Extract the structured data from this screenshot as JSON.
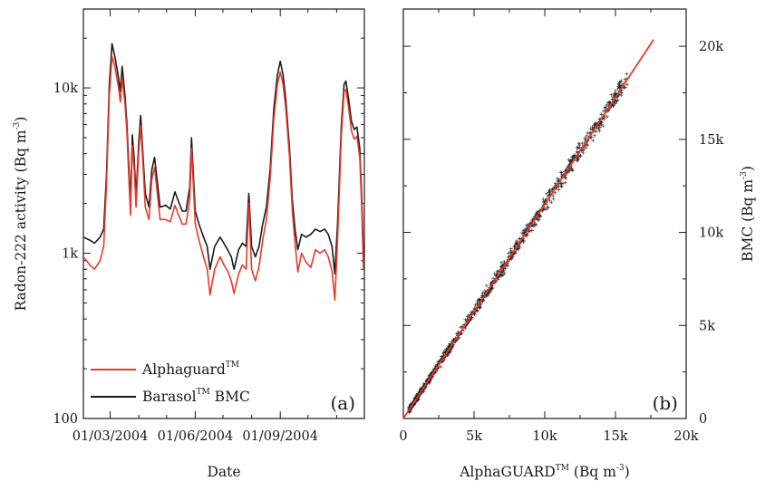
{
  "chart_data": [
    {
      "panel": "a",
      "type": "line",
      "panel_label": "(a)",
      "xlabel": "Date",
      "ylabel": {
        "main": "Radon-222 activity (Bq m",
        "sup": "-3",
        "close": ")"
      },
      "yscale": "log",
      "ylim": [
        100,
        30000
      ],
      "yticks": [
        100,
        1000,
        10000
      ],
      "ytick_labels": [
        "100",
        "1k",
        "10k"
      ],
      "x_axis_start": "2004-02-01",
      "x_axis_end": "2004-12-01",
      "xticks": [
        "2004-03-01",
        "2004-06-01",
        "2004-09-01"
      ],
      "xtick_labels": [
        "01/03/2004",
        "01/06/2004",
        "01/09/2004"
      ],
      "legend_position": "bottom-left",
      "series": [
        {
          "name": "Alphaguard",
          "name_sup": "TM",
          "name_suffix": "",
          "color": "#e8392c",
          "points": [
            [
              "2004-02-01",
              950
            ],
            [
              "2004-02-08",
              850
            ],
            [
              "2004-02-13",
              800
            ],
            [
              "2004-02-19",
              900
            ],
            [
              "2004-02-23",
              1100
            ],
            [
              "2004-02-26",
              2600
            ],
            [
              "2004-02-29",
              9000
            ],
            [
              "2004-03-03",
              15500
            ],
            [
              "2004-03-06",
              13500
            ],
            [
              "2004-03-10",
              10000
            ],
            [
              "2004-03-12",
              8200
            ],
            [
              "2004-03-14",
              11500
            ],
            [
              "2004-03-17",
              8000
            ],
            [
              "2004-03-19",
              5500
            ],
            [
              "2004-03-21",
              3000
            ],
            [
              "2004-03-23",
              1700
            ],
            [
              "2004-03-25",
              4500
            ],
            [
              "2004-03-27",
              3200
            ],
            [
              "2004-03-29",
              1900
            ],
            [
              "2004-04-01",
              4200
            ],
            [
              "2004-04-03",
              5900
            ],
            [
              "2004-04-05",
              3800
            ],
            [
              "2004-04-08",
              1900
            ],
            [
              "2004-04-12",
              1600
            ],
            [
              "2004-04-15",
              2800
            ],
            [
              "2004-04-18",
              3300
            ],
            [
              "2004-04-21",
              2300
            ],
            [
              "2004-04-24",
              1600
            ],
            [
              "2004-04-30",
              1600
            ],
            [
              "2004-05-05",
              1550
            ],
            [
              "2004-05-10",
              1950
            ],
            [
              "2004-05-14",
              1700
            ],
            [
              "2004-05-18",
              1500
            ],
            [
              "2004-05-22",
              1500
            ],
            [
              "2004-05-26",
              2100
            ],
            [
              "2004-05-28",
              4300
            ],
            [
              "2004-05-30",
              2600
            ],
            [
              "2004-06-01",
              1500
            ],
            [
              "2004-06-05",
              1200
            ],
            [
              "2004-06-10",
              950
            ],
            [
              "2004-06-14",
              800
            ],
            [
              "2004-06-17",
              560
            ],
            [
              "2004-06-22",
              800
            ],
            [
              "2004-06-28",
              950
            ],
            [
              "2004-07-02",
              850
            ],
            [
              "2004-07-06",
              780
            ],
            [
              "2004-07-10",
              680
            ],
            [
              "2004-07-13",
              570
            ],
            [
              "2004-07-18",
              750
            ],
            [
              "2004-07-22",
              850
            ],
            [
              "2004-07-26",
              800
            ],
            [
              "2004-07-29",
              2000
            ],
            [
              "2004-08-01",
              800
            ],
            [
              "2004-08-05",
              680
            ],
            [
              "2004-08-09",
              830
            ],
            [
              "2004-08-13",
              1200
            ],
            [
              "2004-08-17",
              1600
            ],
            [
              "2004-08-21",
              2800
            ],
            [
              "2004-08-25",
              6500
            ],
            [
              "2004-08-29",
              10500
            ],
            [
              "2004-09-01",
              12500
            ],
            [
              "2004-09-04",
              10500
            ],
            [
              "2004-09-07",
              7500
            ],
            [
              "2004-09-11",
              3800
            ],
            [
              "2004-09-14",
              1800
            ],
            [
              "2004-09-17",
              1150
            ],
            [
              "2004-09-20",
              770
            ],
            [
              "2004-09-24",
              1000
            ],
            [
              "2004-09-29",
              880
            ],
            [
              "2004-10-04",
              820
            ],
            [
              "2004-10-09",
              1050
            ],
            [
              "2004-10-14",
              1000
            ],
            [
              "2004-10-19",
              1050
            ],
            [
              "2004-10-23",
              950
            ],
            [
              "2004-10-27",
              780
            ],
            [
              "2004-10-30",
              520
            ],
            [
              "2004-11-02",
              1200
            ],
            [
              "2004-11-06",
              5000
            ],
            [
              "2004-11-09",
              9500
            ],
            [
              "2004-11-11",
              9800
            ],
            [
              "2004-11-14",
              7500
            ],
            [
              "2004-11-17",
              5500
            ],
            [
              "2004-11-20",
              4900
            ],
            [
              "2004-11-23",
              5100
            ],
            [
              "2004-11-26",
              3800
            ],
            [
              "2004-11-28",
              2000
            ],
            [
              "2004-11-30",
              800
            ]
          ]
        },
        {
          "name": "Barasol",
          "name_sup": "TM",
          "name_suffix": " BMC",
          "color": "#1a1a1a",
          "points": [
            [
              "2004-02-01",
              1250
            ],
            [
              "2004-02-08",
              1200
            ],
            [
              "2004-02-13",
              1150
            ],
            [
              "2004-02-19",
              1250
            ],
            [
              "2004-02-23",
              1400
            ],
            [
              "2004-02-26",
              3000
            ],
            [
              "2004-02-29",
              10500
            ],
            [
              "2004-03-03",
              18500
            ],
            [
              "2004-03-06",
              15500
            ],
            [
              "2004-03-10",
              11500
            ],
            [
              "2004-03-12",
              9500
            ],
            [
              "2004-03-14",
              13500
            ],
            [
              "2004-03-17",
              9000
            ],
            [
              "2004-03-19",
              6200
            ],
            [
              "2004-03-21",
              3500
            ],
            [
              "2004-03-23",
              2000
            ],
            [
              "2004-03-25",
              5200
            ],
            [
              "2004-03-27",
              3700
            ],
            [
              "2004-03-29",
              2200
            ],
            [
              "2004-04-01",
              4800
            ],
            [
              "2004-04-03",
              6800
            ],
            [
              "2004-04-05",
              4300
            ],
            [
              "2004-04-08",
              2300
            ],
            [
              "2004-04-12",
              1900
            ],
            [
              "2004-04-15",
              3200
            ],
            [
              "2004-04-18",
              3800
            ],
            [
              "2004-04-21",
              2700
            ],
            [
              "2004-04-24",
              1900
            ],
            [
              "2004-04-30",
              1950
            ],
            [
              "2004-05-05",
              1850
            ],
            [
              "2004-05-10",
              2350
            ],
            [
              "2004-05-14",
              2050
            ],
            [
              "2004-05-18",
              1800
            ],
            [
              "2004-05-22",
              1800
            ],
            [
              "2004-05-26",
              2500
            ],
            [
              "2004-05-28",
              5000
            ],
            [
              "2004-05-30",
              3000
            ],
            [
              "2004-06-01",
              1800
            ],
            [
              "2004-06-05",
              1500
            ],
            [
              "2004-06-10",
              1250
            ],
            [
              "2004-06-14",
              1100
            ],
            [
              "2004-06-17",
              800
            ],
            [
              "2004-06-22",
              1100
            ],
            [
              "2004-06-28",
              1250
            ],
            [
              "2004-07-02",
              1150
            ],
            [
              "2004-07-06",
              1050
            ],
            [
              "2004-07-10",
              950
            ],
            [
              "2004-07-13",
              800
            ],
            [
              "2004-07-18",
              1050
            ],
            [
              "2004-07-22",
              1150
            ],
            [
              "2004-07-26",
              1100
            ],
            [
              "2004-07-29",
              2300
            ],
            [
              "2004-08-01",
              1100
            ],
            [
              "2004-08-05",
              950
            ],
            [
              "2004-08-09",
              1100
            ],
            [
              "2004-08-13",
              1500
            ],
            [
              "2004-08-17",
              1900
            ],
            [
              "2004-08-21",
              3200
            ],
            [
              "2004-08-25",
              7500
            ],
            [
              "2004-08-29",
              12000
            ],
            [
              "2004-09-01",
              14500
            ],
            [
              "2004-09-04",
              12000
            ],
            [
              "2004-09-07",
              8500
            ],
            [
              "2004-09-11",
              4300
            ],
            [
              "2004-09-14",
              2100
            ],
            [
              "2004-09-17",
              1400
            ],
            [
              "2004-09-20",
              1050
            ],
            [
              "2004-09-24",
              1300
            ],
            [
              "2004-09-29",
              1250
            ],
            [
              "2004-10-04",
              1300
            ],
            [
              "2004-10-09",
              1400
            ],
            [
              "2004-10-14",
              1350
            ],
            [
              "2004-10-19",
              1400
            ],
            [
              "2004-10-23",
              1300
            ],
            [
              "2004-10-27",
              1100
            ],
            [
              "2004-10-30",
              750
            ],
            [
              "2004-11-02",
              1500
            ],
            [
              "2004-11-06",
              5800
            ],
            [
              "2004-11-09",
              10500
            ],
            [
              "2004-11-11",
              11000
            ],
            [
              "2004-11-14",
              8500
            ],
            [
              "2004-11-17",
              6300
            ],
            [
              "2004-11-20",
              5600
            ],
            [
              "2004-11-23",
              5800
            ],
            [
              "2004-11-26",
              4300
            ],
            [
              "2004-11-28",
              2300
            ],
            [
              "2004-11-30",
              950
            ]
          ]
        }
      ]
    },
    {
      "panel": "b",
      "type": "scatter",
      "panel_label": "(b)",
      "xlabel": {
        "main": "AlphaGUARD",
        "sup1": "TM",
        "mid": " (Bq m",
        "sup2": "-3",
        "close": ")"
      },
      "ylabel": {
        "main": "BMC (Bq m",
        "sup": "-3",
        "close": ")"
      },
      "xlim": [
        0,
        20000
      ],
      "ylim": [
        0,
        22000
      ],
      "xticks": [
        0,
        5000,
        10000,
        15000,
        20000
      ],
      "xtick_labels": [
        "0",
        "5k",
        "10k",
        "15k",
        "20k"
      ],
      "yticks": [
        0,
        5000,
        10000,
        15000,
        20000
      ],
      "ytick_labels": [
        "0",
        "5k",
        "10k",
        "15k",
        "20k"
      ],
      "y_axis_side": "right",
      "grid": false,
      "scatter_range_x": [
        400,
        15900
      ],
      "scatter_marker_color": "#1a1a1a",
      "fit_line": {
        "color": "#e8392c",
        "intercept": 0,
        "slope": 1.15,
        "x_start": 0,
        "x_end": 17700
      }
    }
  ]
}
